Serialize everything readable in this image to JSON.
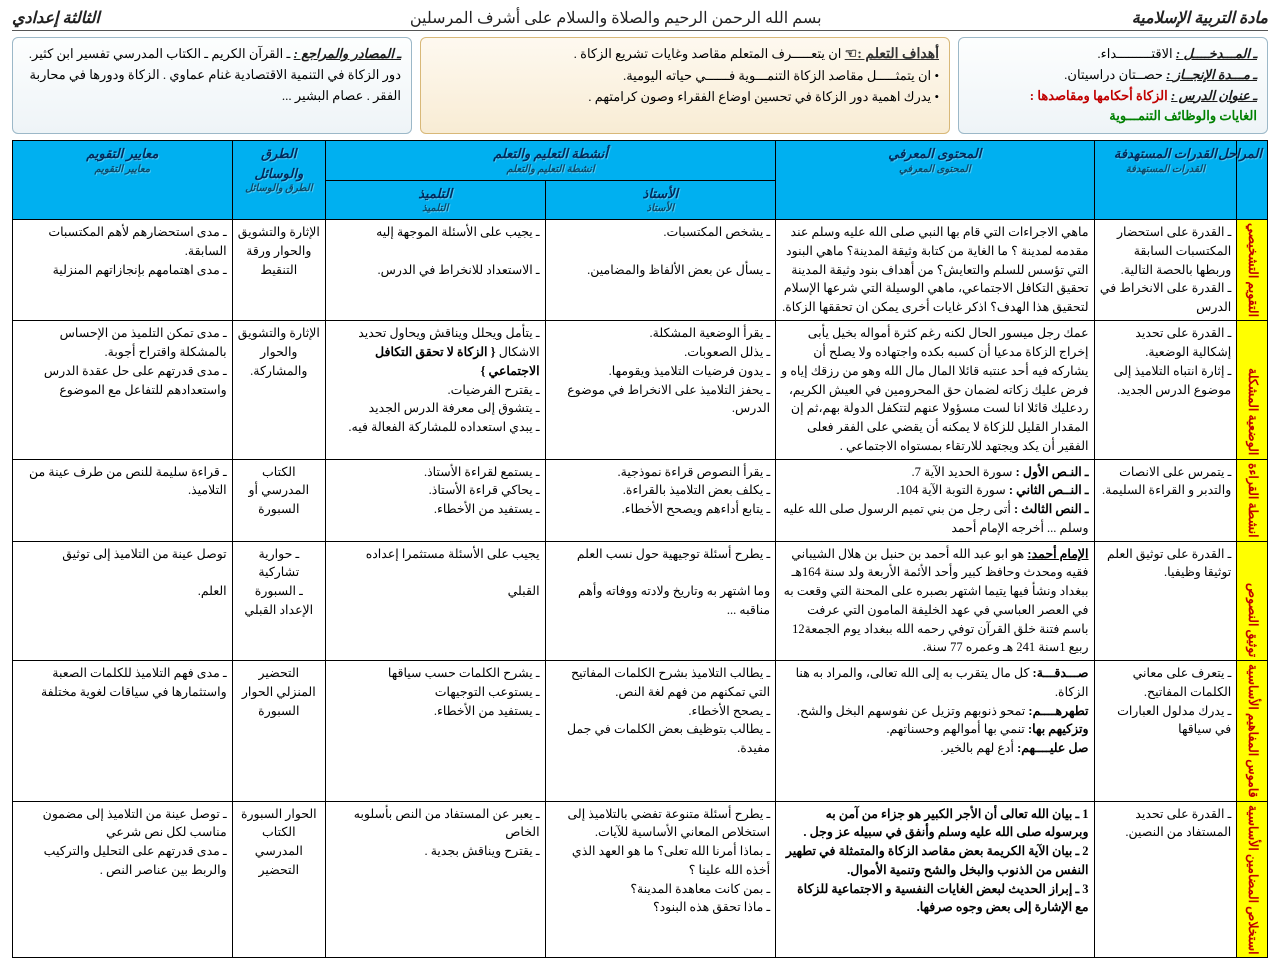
{
  "header": {
    "subject": "مادة التربية الإسلامية",
    "basmala": "بسم الله الرحمن الرحيم والصلاة والسلام على أشرف المرسلين",
    "level": "الثالثة إعدادي"
  },
  "info_right": {
    "l1_label": "ـ المـــدخــــل :",
    "l1_val": "الاقتـــــــــداء.",
    "l2_label": "ـ مـــدة الإنجــاز :",
    "l2_val": "حصــتان دراسيتان.",
    "l3_label": "ـ عنوان الدرس :",
    "l3_val": "الزكاة أحكامها ومقاصدها :",
    "l4": "الغايات والوظائف التنمـــوية"
  },
  "info_center": {
    "title": "أهداف التعلم :☜",
    "g1": "ان يتعـــــرف المتعلم مقاصد وغايات تشريع الزكاة .",
    "g2": "ان يتمثـــــل مقاصد الزكاة التنمـــوية فــــــي حياته اليومية.",
    "g3": "يدرك اهمية دور الزكاة في تحسين اوضاع الفقراء وصون كرامتهم ."
  },
  "info_left": {
    "label": "ـ المصادر والمراجع :",
    "text": "ـ القرآن الكريم ـ الكتاب المدرسي تفسير ابن كثير. دور الزكاة في التنمية الاقتصادية غنام عماوي . الزكاة ودورها في محاربة الفقر . عصام البشير ..."
  },
  "columns": {
    "stage": "المراحل",
    "capacities": "القدرات المستهدفة",
    "content": "المحتوى المعرفي",
    "activities": "أنشطة التعليم والتعلم",
    "teacher": "الأستاذ",
    "student": "التلميذ",
    "methods": "الطرق والوسائل",
    "eval": "معايير التقويم"
  },
  "rows": [
    {
      "stage": "التقويم التشخيصي",
      "cap": "ـ القدرة على استحضار المكتسبات السابقة وربطها بالحصة التالية.\nـ القدرة على الانخراط في الدرس",
      "content": "ماهي الاجراءات التي قام بها النبي صلى الله عليه وسلم عند مقدمه لمدينة ؟ ما الغاية من كتابة وثيقة المدينة؟ ماهي البنود التي تؤسس للسلم والتعايش؟ من أهداف بنود وثيقة المدينة تحقيق التكافل الاجتماعي، ماهي الوسيلة التي شرعها الإسلام لتحقيق هذا الهدف؟ اذكر غايات أخرى يمكن ان تحققها الزكاة.",
      "teacher": "ـ يشخص المكتسبات.\n\nـ يسأل عن بعض الألفاظ والمضامين.",
      "student": "ـ يجيب على الأسئلة الموجهة إليه\n\nـ الاستعداد للانخراط في الدرس.",
      "method": "الإثارة والتشويق والحوار ورقة التنقيط",
      "eval": "ـ مدى استحضارهم لأهم المكتسبات السابقة.\nـ مدى اهتمامهم بإنجازاتهم المنزلية"
    },
    {
      "stage": "الوضعية المشكلة",
      "cap": "ـ القدرة على تحديد إشكالية الوضعية.\nـ إثارة انتباه التلاميذ إلى موضوع الدرس الجديد.",
      "content": "عمك رجل ميسور الحال لكنه رغم كثرة أمواله بخيل يأبى إخراج الزكاة مدعيا أن كسبه بكده واجتهاده ولا يصلح أن يشاركه فيه أحد عنتبه قائلا المال مال الله وهو من رزقك إياه و فرض عليك زكاته لضمان حق المحرومين في العيش الكريم، ردعليك قائلا انا لست مسؤولا عنهم لتتكفل الدولة بهم،ثم إن المقدار القليل للزكاة لا يمكنه أن يقضي على الفقر فعلى الفقير أن يكد ويجتهد للارتقاء بمستواه الاجتماعي .",
      "teacher": "ـ يقرأ الوضعية المشكلة.\nـ يذلل الصعوبات.\nـ يدون فرضيات التلاميذ ويقومها.\nـ يحفز التلاميذ على الانخراط في موضوع الدرس.",
      "student": "ـ يتأمل ويحلل ويناقش ويحاول تحديد الاشكال { الزكاة لا تحقق التكافل الاجتماعي }\nـ يقترح الفرضيات.\nـ يتشوق إلى معرفة الدرس الجديد\nـ يبدي استعداده للمشاركة الفعالة فيه.",
      "method": "الإثارة والتشويق والحوار والمشاركة.",
      "eval": "ـ مدى تمكن التلميذ من الإحساس بالمشكلة واقتراح أجوبة.\nـ مدى قدرتهم على حل عقدة الدرس واستعدادهم للتفاعل مع الموضوع"
    },
    {
      "stage": "انشطة القراءة",
      "cap": "ـ يتمرس على الانصات والتدبر و القراءة السليمة.",
      "content": "ـ النـص الأول : سورة الحديد الآية 7.\nـ النــص الثاني : سورة التوبة الآية 104.\nـ النص الثالث : أتى رجل من بني تميم الرسول صلى الله عليه وسلم ... أخرجه الإمام أحمد",
      "teacher": "ـ يقرأ النصوص قراءة نموذجية.\nـ يكلف بعض التلاميذ بالقراءة.\nـ يتابع أداءهم ويصحح الأخطاء.",
      "student": "ـ يستمع لقراءة الأستاذ.\nـ يحاكي قراءة الأستاذ.\nـ يستفيد من الأخطاء.",
      "method": "الكتاب المدرسي أو السبورة",
      "eval": "ـ قراءة سليمة للنص من طرف عينة من التلاميذ."
    },
    {
      "stage": "توثيق النصوص",
      "cap": "ـ القدرة على توثيق العلم توثيقا وظيفيا.",
      "content": "الإمام أحمد: هو ابو عبد الله أحمد بن حنبل بن هلال الشيباني فقيه ومحدث وحافظ كبير وأحد الأئمة الأربعة ولد سنة 164هـ ببغداد ونشأ فيها يتيما اشتهر بصبره على المحنة التي وقعت به في العصر العباسي في عهد الخليفة المامون التي عرفت باسم فتنة خلق القرآن توفي رحمه الله ببغداد يوم الجمعة12 ربيع 1سنة 241 هـ وعمره 77 سنة.",
      "teacher": "ـ يطرح أسئلة توجيهية حول نسب العلم\n\nوما اشتهر به وتاريخ ولادته ووفاته وأهم مناقبه ...",
      "student": "يجيب على الأسئلة مستثمرا إعداده\n\nالقبلي",
      "method": "ـ حوارية تشاركية\nـ السبورة الإعداد القبلي",
      "eval": "توصل عينة من التلاميذ إلى توثيق\n\nالعلم."
    },
    {
      "stage": "قاموس المفاهيم الأساسية",
      "cap": "ـ يتعرف على معاني الكلمات المفاتيح.\nـ يدرك مدلول العبارات في سياقها",
      "content": "صـــدقـــة: كل مال يتقرب به إلى الله تعالى، والمراد به هنا الزكاة.\nتطهرهــــم: تمحو ذنوبهم وتزيل عن نفوسهم البخل والشح.\nوتزكيهم بها: تنمي بها أموالهم وحسناتهم.\nصل عليــــهم: أدع لهم بالخير.",
      "teacher": "ـ يطالب التلاميذ بشرح الكلمات المفاتيح التي تمكنهم من فهم لغة النص.\nـ يصحح الأخطاء.\nـ يطالب بتوظيف بعض الكلمات في جمل مفيدة.",
      "student": "ـ يشرح الكلمات حسب سياقها\nـ يستوعب التوجيهات\nـ يستفيد من الأخطاء.",
      "method": "التحضير المنزلي الحوار السبورة",
      "eval": "ـ مدى فهم التلاميذ للكلمات الصعبة واستثمارها في سياقات لغوية مختلفة"
    },
    {
      "stage": "استخلاص المضامين الأساسية",
      "cap": "ـ القدرة على تحديد المستفاد من النصين.",
      "content": "1 ـ بيان الله تعالى أن الأجر الكبير هو جزاء من آمن به وبرسوله صلى الله عليه وسلم وأنفق في سبيله عز وجل .\n2 ـ بيان الآية الكريمة بعض مقاصد الزكاة والمتمثلة في تطهير النفس من الذنوب والبخل والشح وتنمية الأموال.\n3 ـ إبراز الحديث لبعض الغايات النفسية و الاجتماعية للزكاة مع الإشارة إلى بعض وجوه صرفها.",
      "teacher": "ـ يطرح أسئلة متنوعة تفضي بالتلاميذ إلى استخلاص المعاني الأساسية للآيات.\nـ بماذا أمرنا الله تعلى؟ ما هو العهد الذي أخذه الله علينا ؟\nـ بمن كانت معاهدة المدينة؟\nـ ماذا تحقق هذه البنود؟",
      "student": "ـ يعبر عن المستفاد من النص بأسلوبه الخاص\nـ يقترح ويناقش بجدية .",
      "method": "الحوار السبورة الكتاب المدرسي التحضير",
      "eval": "ـ توصل عينة من التلاميذ إلى مضمون مناسب لكل نص شرعي\nـ مدى قدرتهم على التحليل والتركيب والربط بين عناصر النص ."
    }
  ]
}
